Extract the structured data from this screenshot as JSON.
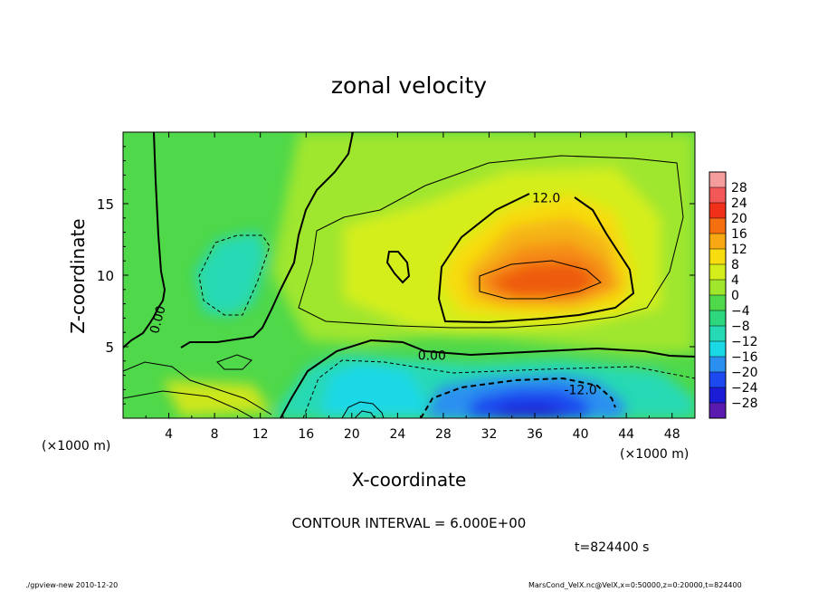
{
  "chart_data": {
    "type": "heatmap",
    "title": "zonal velocity",
    "xlabel": "X-coordinate",
    "ylabel": "Z-coordinate",
    "x_unit_label": "(×1000 m)",
    "z_unit_label": "(×1000 m)",
    "xlim": [
      0,
      50
    ],
    "ylim": [
      0,
      20
    ],
    "x_ticks": [
      4,
      8,
      12,
      16,
      20,
      24,
      28,
      32,
      36,
      40,
      44,
      48
    ],
    "y_ticks": [
      5,
      10,
      15
    ],
    "colorbar": {
      "levels": [
        28,
        24,
        20,
        16,
        12,
        8,
        4,
        0,
        -4,
        -8,
        -12,
        -16,
        -20,
        -24,
        -28
      ],
      "labels": [
        "28",
        "24",
        "20",
        "16",
        "12",
        "8",
        "4",
        "0",
        "−4",
        "−8",
        "−12",
        "−16",
        "−20",
        "−24",
        "−28"
      ]
    },
    "contour_labels": [
      {
        "text": "12.0",
        "x": 37,
        "z": 15.4
      },
      {
        "text": "0.00",
        "x": 27,
        "z": 4.4
      },
      {
        "text": "-12.0",
        "x": 40,
        "z": 2.0
      },
      {
        "text": "0.00",
        "x": 3,
        "z": 6.9
      }
    ],
    "contour_interval_text": "CONTOUR INTERVAL = 6.000E+00",
    "time_text": "t=824400 s"
  },
  "footer": {
    "left": "./gpview-new   2010-12-20",
    "right": "MarsCond_VelX.nc@VelX,x=0:50000,z=0:20000,t=824400"
  },
  "colors": {
    "plus12": "#f7dc10",
    "plus8": "#d4ee1c",
    "plus4": "#9fe62d",
    "zero": "#4fd84a",
    "minus4": "#2ed67d",
    "minus8": "#26d9b4",
    "minus12": "#1bd8e6",
    "minus16": "#2b8ff0",
    "minus20": "#1d4af0",
    "minus24": "#1a1cd6"
  }
}
